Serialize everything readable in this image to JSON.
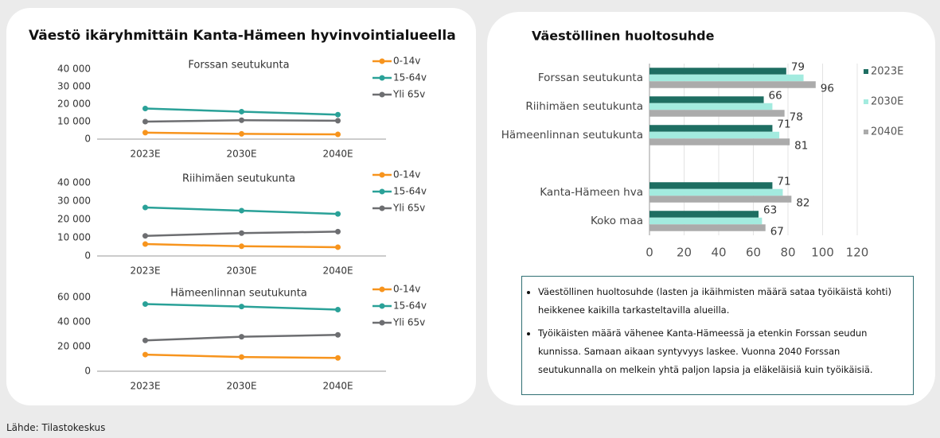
{
  "panel_title": "Väestö ikäryhmittäin Kanta-Hämeen hyvinvointialueella",
  "notes": [
    "Väestöllinen huoltosuhde (lasten ja ikäihmisten määrä sataa työikäistä kohti) heikkenee kaikilla tarkasteltavilla alueilla.",
    "Työikäisten määrä vähenee Kanta-Hämeessä ja etenkin Forssan seudun kunnissa. Samaan aikaan syntyvyys laskee. Vuonna 2040 Forssan seutukunnalla on melkein yhtä paljon lapsia ja eläkeläisiä kuin työikäisiä."
  ],
  "source": "Lähde: Tilastokeskus",
  "chart_data": [
    {
      "type": "line",
      "title": "Forssan seutukunta",
      "categories": [
        "2023E",
        "2030E",
        "2040E"
      ],
      "series": [
        {
          "name": "0-14v",
          "color": "#f7941d",
          "values": [
            3700,
            3000,
            2700
          ]
        },
        {
          "name": "15-64v",
          "color": "#2aa198",
          "values": [
            17500,
            15700,
            14000
          ]
        },
        {
          "name": "Yli 65v",
          "color": "#6d6e71",
          "values": [
            10000,
            10800,
            10500
          ]
        }
      ],
      "ylim": [
        0,
        40000
      ],
      "yticks": [
        0,
        {
          "value": 10000,
          "label": "10 000"
        },
        {
          "value": 20000,
          "label": "20 000"
        },
        {
          "value": 30000,
          "label": "30 000"
        },
        {
          "value": 40000,
          "label": "40 000"
        }
      ],
      "legend": "right"
    },
    {
      "type": "line",
      "title": "Riihimäen seutukunta",
      "categories": [
        "2023E",
        "2030E",
        "2040E"
      ],
      "series": [
        {
          "name": "0-14v",
          "color": "#f7941d",
          "values": [
            6500,
            5300,
            4800
          ]
        },
        {
          "name": "15-64v",
          "color": "#2aa198",
          "values": [
            26500,
            24800,
            23000
          ]
        },
        {
          "name": "Yli 65v",
          "color": "#6d6e71",
          "values": [
            11000,
            12500,
            13300
          ]
        }
      ],
      "ylim": [
        0,
        40000
      ],
      "yticks": [
        0,
        {
          "value": 10000,
          "label": "10 000"
        },
        {
          "value": 20000,
          "label": "20 000"
        },
        {
          "value": 30000,
          "label": "30 000"
        },
        {
          "value": 40000,
          "label": "40 000"
        }
      ],
      "legend": "right"
    },
    {
      "type": "line",
      "title": "Hämeenlinnan seutukunta",
      "categories": [
        "2023E",
        "2030E",
        "2040E"
      ],
      "series": [
        {
          "name": "0-14v",
          "color": "#f7941d",
          "values": [
            13500,
            11500,
            10800
          ]
        },
        {
          "name": "15-64v",
          "color": "#2aa198",
          "values": [
            54500,
            52500,
            50000
          ]
        },
        {
          "name": "Yli 65v",
          "color": "#6d6e71",
          "values": [
            25000,
            28000,
            29500
          ]
        }
      ],
      "ylim": [
        0,
        60000
      ],
      "yticks": [
        0,
        {
          "value": 20000,
          "label": "20 000"
        },
        {
          "value": 40000,
          "label": "40 000"
        },
        {
          "value": 60000,
          "label": "60 000"
        }
      ],
      "legend": "right"
    },
    {
      "type": "barh",
      "title": "Väestöllinen huoltosuhde",
      "categories": [
        "Forssan seutukunta",
        "Riihimäen seutukunta",
        "Hämeenlinnan seutukunta",
        null,
        "Kanta-Hämeen hva",
        "Koko maa"
      ],
      "series": [
        {
          "name": "2023E",
          "color": "#1e6e62",
          "labels": true,
          "values": [
            79,
            66,
            71,
            null,
            71,
            63
          ]
        },
        {
          "name": "2030E",
          "color": "#a3ebdf",
          "labels": false,
          "values": [
            89,
            71,
            75,
            null,
            77,
            65
          ]
        },
        {
          "name": "2040E",
          "color": "#ababab",
          "labels": true,
          "values": [
            96,
            78,
            81,
            null,
            82,
            67
          ]
        }
      ],
      "xlim": [
        0,
        120
      ],
      "xticks": [
        0,
        20,
        40,
        60,
        80,
        100,
        120
      ],
      "grid": true,
      "legend": "right"
    }
  ]
}
